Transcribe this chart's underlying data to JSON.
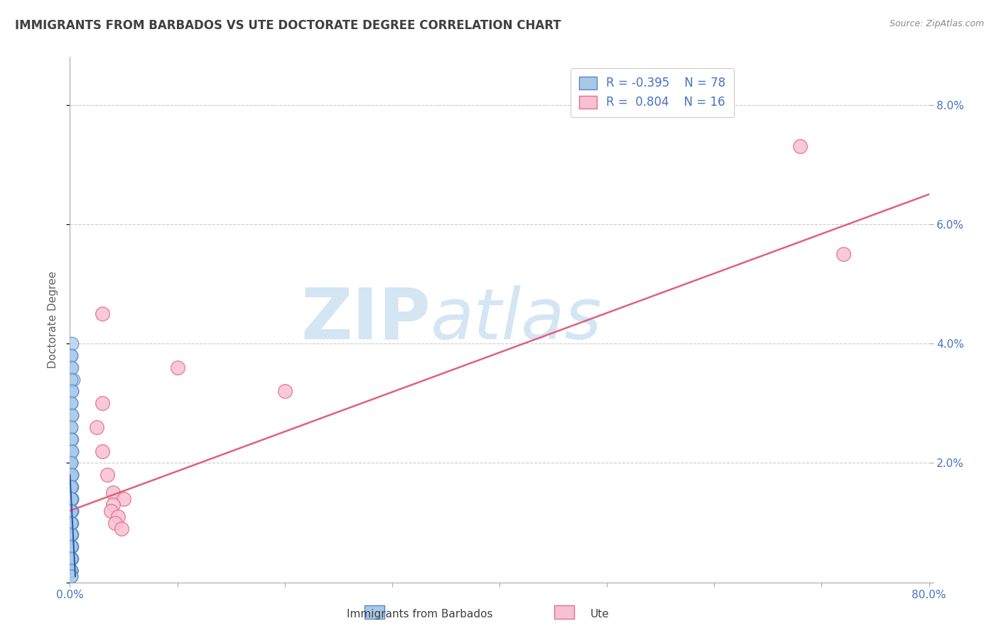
{
  "title": "IMMIGRANTS FROM BARBADOS VS UTE DOCTORATE DEGREE CORRELATION CHART",
  "source_text": "Source: ZipAtlas.com",
  "ylabel": "Doctorate Degree",
  "xlim": [
    0,
    0.8
  ],
  "ylim": [
    0,
    0.088
  ],
  "xticks": [
    0.0,
    0.1,
    0.2,
    0.3,
    0.4,
    0.5,
    0.6,
    0.7,
    0.8
  ],
  "yticks": [
    0.0,
    0.02,
    0.04,
    0.06,
    0.08
  ],
  "xticklabels": [
    "0.0%",
    "",
    "",
    "",
    "",
    "",
    "",
    "",
    "80.0%"
  ],
  "yticklabels_right": [
    "",
    "2.0%",
    "4.0%",
    "6.0%",
    "8.0%"
  ],
  "blue_color": "#a8c8e8",
  "blue_edge_color": "#5588cc",
  "pink_color": "#f8c0d0",
  "pink_edge_color": "#e07090",
  "line_color": "#e06080",
  "blue_line_color": "#3355aa",
  "legend_R_blue": "R = -0.395",
  "legend_N_blue": "N = 78",
  "legend_R_pink": "R =  0.804",
  "legend_N_pink": "N = 16",
  "watermark_zip": "ZIP",
  "watermark_atlas": "atlas",
  "background_color": "#ffffff",
  "grid_color": "#cccccc",
  "title_color": "#404040",
  "axis_label_color": "#606060",
  "tick_color": "#4472c4",
  "blue_scatter_x": [
    0.001,
    0.002,
    0.001,
    0.003,
    0.002,
    0.001,
    0.002,
    0.001,
    0.002,
    0.001,
    0.001,
    0.002,
    0.001,
    0.002,
    0.001,
    0.002,
    0.001,
    0.002,
    0.001,
    0.002,
    0.001,
    0.002,
    0.001,
    0.001,
    0.002,
    0.001,
    0.002,
    0.001,
    0.002,
    0.001,
    0.001,
    0.002,
    0.001,
    0.002,
    0.001,
    0.002,
    0.001,
    0.001,
    0.002,
    0.001,
    0.002,
    0.001,
    0.001,
    0.002,
    0.001,
    0.001,
    0.002,
    0.001,
    0.001,
    0.002,
    0.001,
    0.001,
    0.001,
    0.001,
    0.001,
    0.001,
    0.001,
    0.001,
    0.001,
    0.001,
    0.001,
    0.001,
    0.001,
    0.001,
    0.001,
    0.001,
    0.001,
    0.001,
    0.001,
    0.001,
    0.001,
    0.001,
    0.001,
    0.001,
    0.001,
    0.001,
    0.001,
    0.001
  ],
  "blue_scatter_y": [
    0.038,
    0.04,
    0.036,
    0.034,
    0.032,
    0.03,
    0.028,
    0.026,
    0.024,
    0.022,
    0.02,
    0.018,
    0.016,
    0.014,
    0.012,
    0.01,
    0.038,
    0.036,
    0.034,
    0.032,
    0.03,
    0.028,
    0.026,
    0.024,
    0.022,
    0.02,
    0.018,
    0.016,
    0.014,
    0.012,
    0.01,
    0.008,
    0.006,
    0.004,
    0.002,
    0.022,
    0.02,
    0.018,
    0.016,
    0.014,
    0.012,
    0.01,
    0.008,
    0.006,
    0.004,
    0.002,
    0.018,
    0.016,
    0.014,
    0.012,
    0.01,
    0.008,
    0.006,
    0.004,
    0.002,
    0.016,
    0.014,
    0.012,
    0.01,
    0.008,
    0.006,
    0.004,
    0.002,
    0.014,
    0.012,
    0.01,
    0.008,
    0.006,
    0.004,
    0.002,
    0.012,
    0.01,
    0.008,
    0.006,
    0.004,
    0.002,
    0.001,
    0.001
  ],
  "pink_scatter_x": [
    0.03,
    0.1,
    0.03,
    0.025,
    0.03,
    0.035,
    0.2,
    0.68,
    0.72,
    0.04,
    0.05,
    0.04,
    0.038,
    0.045,
    0.042,
    0.048
  ],
  "pink_scatter_y": [
    0.045,
    0.036,
    0.03,
    0.026,
    0.022,
    0.018,
    0.032,
    0.073,
    0.055,
    0.015,
    0.014,
    0.013,
    0.012,
    0.011,
    0.01,
    0.009
  ],
  "pink_line_x": [
    0.0,
    0.8
  ],
  "pink_line_y": [
    0.012,
    0.065
  ],
  "blue_line_x": [
    0.0,
    0.005
  ],
  "blue_line_y": [
    0.018,
    0.001
  ]
}
